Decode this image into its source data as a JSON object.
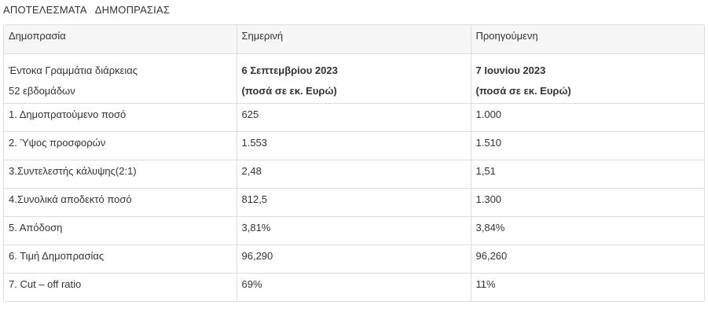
{
  "heading": "ΑΠΟΤΕΛΕΣΜΑΤΑ   ΔΗΜΟΠΡΑΣΙΑΣ",
  "table": {
    "headers": [
      "Δημοπρασία",
      "Σημερινή",
      "Προηγούμενη"
    ],
    "subheader": {
      "label_line1": "Έντοκα Γραμμάτια διάρκειας",
      "label_line2": "52 εβδομάδων",
      "current_line1": "6 Σεπτεμβρίου 2023",
      "current_line2": "(ποσά σε εκ. Ευρώ)",
      "previous_line1": "7 Ιουνίου 2023",
      "previous_line2": "(ποσά σε εκ. Ευρώ)"
    },
    "rows": [
      {
        "label": "1. Δημοπρατούμενο ποσό",
        "current": "625",
        "previous": "1.000"
      },
      {
        "label": "2. Ύψος προσφορών",
        "current": "1.553",
        "previous": "1.510"
      },
      {
        "label": "3.Συντελεστής κάλυψης(2:1)",
        "current": "2,48",
        "previous": "1,51"
      },
      {
        "label": "4.Συνολικά αποδεκτό ποσό",
        "current": "812,5",
        "previous": "1.300"
      },
      {
        "label": "5. Απόδοση",
        "current": "3,81%",
        "previous": "3,84%"
      },
      {
        "label": "6. Τιμή Δημοπρασίας",
        "current": "96,290",
        "previous": "96,260"
      },
      {
        "label": "7. Cut – off ratio",
        "current": "69%",
        "previous": "11%"
      }
    ]
  }
}
